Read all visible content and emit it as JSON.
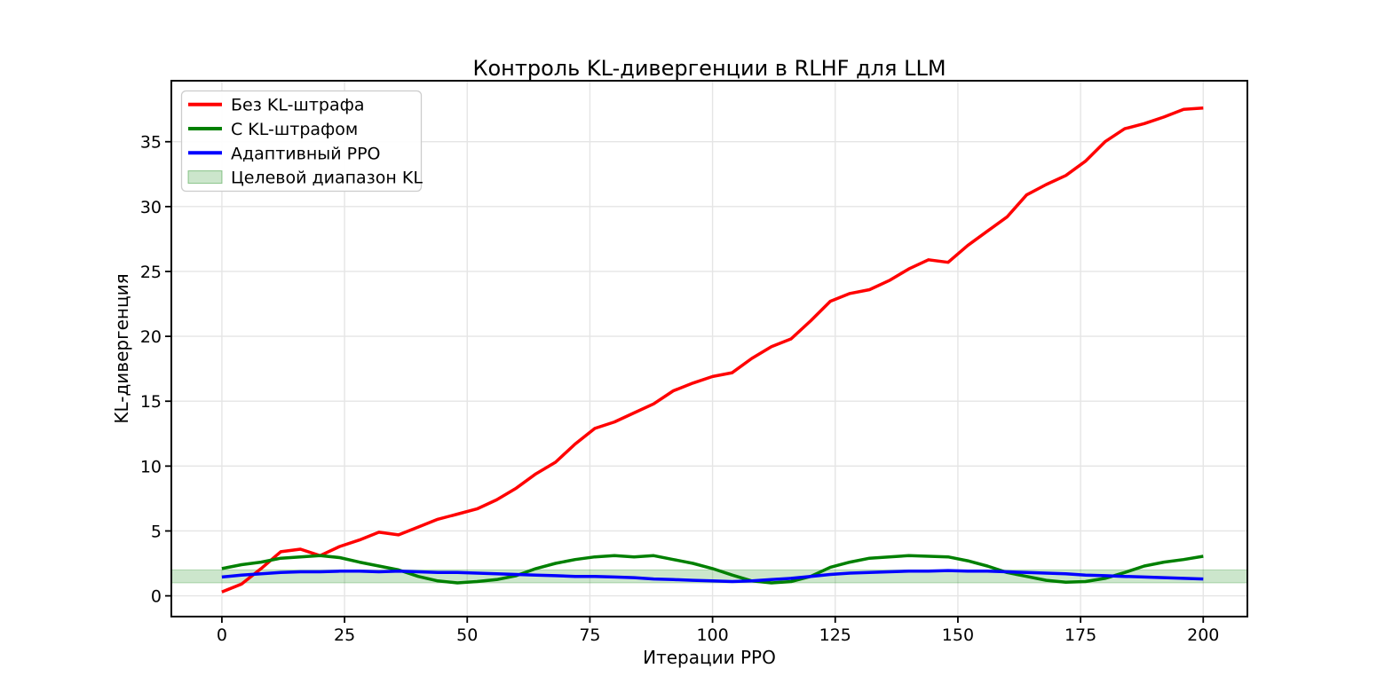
{
  "chart_data": {
    "type": "line",
    "title": "Контроль KL-дивергенции в RLHF для LLM",
    "xlabel": "Итерации PPO",
    "ylabel": "KL-дивергенция",
    "xlim": [
      -10.3,
      209.0
    ],
    "ylim": [
      -1.6,
      39.7
    ],
    "xticks": [
      0,
      25,
      50,
      75,
      100,
      125,
      150,
      175,
      200
    ],
    "yticks": [
      0,
      5,
      10,
      15,
      20,
      25,
      30,
      35
    ],
    "grid": true,
    "grid_color": "#e5e5e5",
    "legend_position": "upper left",
    "x": [
      0,
      4,
      8,
      12,
      16,
      20,
      24,
      28,
      32,
      36,
      40,
      44,
      48,
      52,
      56,
      60,
      64,
      68,
      72,
      76,
      80,
      84,
      88,
      92,
      96,
      100,
      104,
      108,
      112,
      116,
      120,
      124,
      128,
      132,
      136,
      140,
      144,
      148,
      152,
      156,
      160,
      164,
      168,
      172,
      176,
      180,
      184,
      188,
      192,
      196,
      200
    ],
    "series": [
      {
        "name": "Без KL-штрафа",
        "color": "#ff0000",
        "values": [
          0.3,
          0.9,
          2.1,
          3.4,
          3.6,
          3.1,
          3.8,
          4.3,
          4.9,
          4.7,
          5.3,
          5.9,
          6.3,
          6.7,
          7.4,
          8.3,
          9.4,
          10.3,
          11.7,
          12.9,
          13.4,
          14.1,
          14.8,
          15.8,
          16.4,
          16.9,
          17.2,
          18.3,
          19.2,
          19.8,
          21.2,
          22.7,
          23.3,
          23.6,
          24.3,
          25.2,
          25.9,
          25.7,
          27.0,
          28.1,
          29.2,
          30.9,
          31.7,
          32.4,
          33.5,
          35.0,
          36.0,
          36.4,
          36.9,
          37.5,
          37.6
        ]
      },
      {
        "name": "С KL-штрафом",
        "color": "#008000",
        "values": [
          2.1,
          2.4,
          2.6,
          2.9,
          3.0,
          3.1,
          2.95,
          2.6,
          2.3,
          2.0,
          1.5,
          1.15,
          1.0,
          1.1,
          1.25,
          1.55,
          2.1,
          2.5,
          2.8,
          3.0,
          3.1,
          3.0,
          3.1,
          2.8,
          2.5,
          2.1,
          1.6,
          1.15,
          1.0,
          1.1,
          1.5,
          2.2,
          2.6,
          2.9,
          3.0,
          3.1,
          3.05,
          3.0,
          2.7,
          2.3,
          1.8,
          1.5,
          1.2,
          1.05,
          1.1,
          1.35,
          1.8,
          2.3,
          2.6,
          2.8,
          3.05
        ]
      },
      {
        "name": "Адаптивный PPO",
        "color": "#0000ff",
        "values": [
          1.45,
          1.6,
          1.7,
          1.8,
          1.85,
          1.85,
          1.9,
          1.9,
          1.85,
          1.9,
          1.85,
          1.8,
          1.8,
          1.75,
          1.7,
          1.65,
          1.6,
          1.55,
          1.5,
          1.5,
          1.45,
          1.4,
          1.3,
          1.25,
          1.2,
          1.15,
          1.1,
          1.15,
          1.25,
          1.35,
          1.5,
          1.65,
          1.75,
          1.8,
          1.85,
          1.9,
          1.9,
          1.95,
          1.9,
          1.9,
          1.85,
          1.8,
          1.75,
          1.7,
          1.6,
          1.55,
          1.5,
          1.45,
          1.4,
          1.35,
          1.3
        ]
      }
    ],
    "target_band": {
      "label": "Целевой диапазон KL",
      "ymin": 1.0,
      "ymax": 2.0,
      "fill": "rgba(0,128,0,0.2)",
      "edge": "rgba(0,128,0,0.25)"
    }
  }
}
